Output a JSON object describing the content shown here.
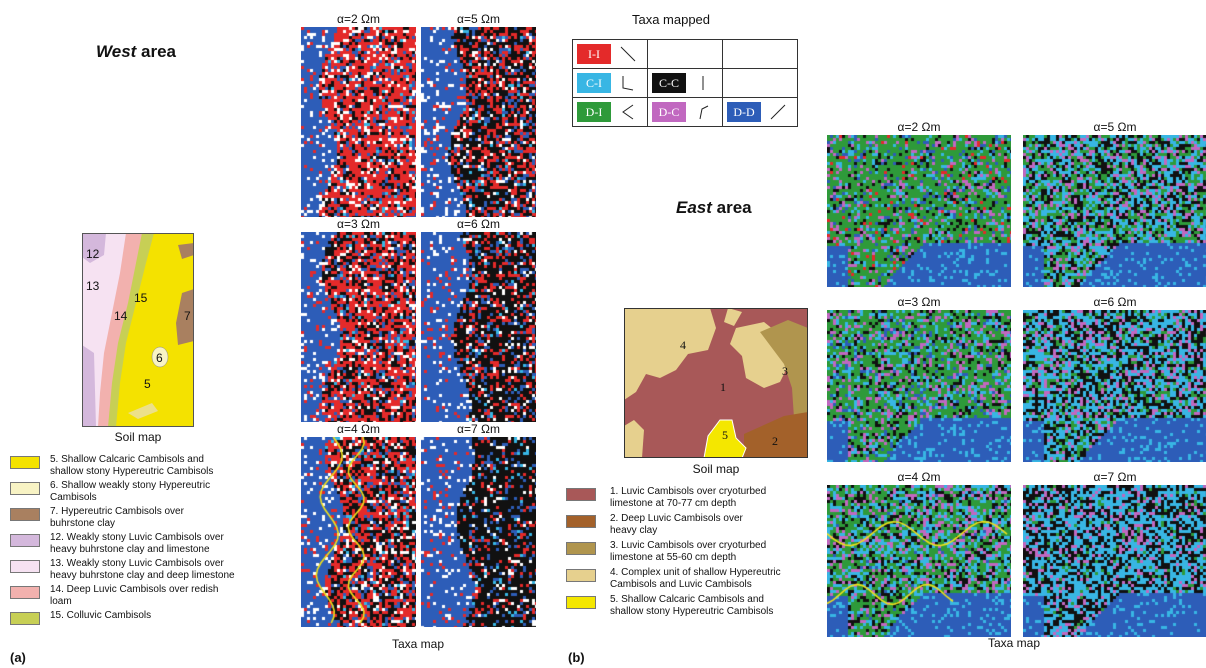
{
  "colors": {
    "I-I": "#e42a2a",
    "C-I": "#38b6e4",
    "C-C": "#111111",
    "D-I": "#2e9a3a",
    "D-C": "#c168c0",
    "D-D": "#2d5db8",
    "boundary": "#f1e01a"
  },
  "west": {
    "title_italic": "West",
    "title_rest": " area",
    "soil_caption": "Soil map",
    "taxa_caption": "Taxa map",
    "panel_labels": [
      "α=2 Ωm",
      "α=5 Ωm",
      "α=3 Ωm",
      "α=6 Ωm",
      "α=4 Ωm",
      "α=7 Ωm"
    ],
    "soil_units": [
      "12",
      "13",
      "14",
      "15",
      "7",
      "6",
      "5"
    ],
    "legend": [
      {
        "color": "#f4e200",
        "line1": "5. Shallow Calcaric Cambisols and",
        "line2": "shallow stony Hypereutric Cambisols"
      },
      {
        "color": "#f8f3c4",
        "line1": "6. Shallow weakly stony Hypereutric",
        "line2": "Cambisols"
      },
      {
        "color": "#a98060",
        "line1": "7. Hypereutric Cambisols over",
        "line2": "buhrstone clay"
      },
      {
        "color": "#d4b8dc",
        "line1": "12. Weakly stony Luvic Cambisols over",
        "line2": "heavy buhrstone clay and limestone"
      },
      {
        "color": "#f6e2f2",
        "line1": "13. Weakly stony Luvic Cambisols over",
        "line2": "heavy buhrstone clay and deep limestone"
      },
      {
        "color": "#f2b1ae",
        "line1": "14. Deep Luvic Cambisols over redish",
        "line2": "loam"
      },
      {
        "color": "#c7cf55",
        "line1": "15. Colluvic Cambisols",
        "line2": ""
      }
    ],
    "fig_letter": "(a)"
  },
  "east": {
    "title_italic": "East",
    "title_rest": " area",
    "soil_caption": "Soil map",
    "taxa_caption": "Taxa map",
    "panel_labels": [
      "α=2 Ωm",
      "α=5 Ωm",
      "α=3 Ωm",
      "α=6 Ωm",
      "α=4 Ωm",
      "α=7 Ωm"
    ],
    "soil_units": [
      "4",
      "1",
      "3",
      "5",
      "2"
    ],
    "legend": [
      {
        "color": "#a85858",
        "line1": "1. Luvic Cambisols over cryoturbed",
        "line2": "limestone at 70-77 cm depth"
      },
      {
        "color": "#a3612a",
        "line1": "2. Deep Luvic Cambisols over",
        "line2": "heavy clay"
      },
      {
        "color": "#b0954e",
        "line1": "3. Luvic Cambisols over cryoturbed",
        "line2": "limestone at 55-60 cm depth"
      },
      {
        "color": "#e6d08e",
        "line1": "4. Complex unit of shallow Hypereutric",
        "line2": "Cambisols and Luvic Cambisols"
      },
      {
        "color": "#f4e700",
        "line1": "5. Shallow Calcaric Cambisols and",
        "line2": "shallow stony Hypereutric Cambisols"
      }
    ],
    "fig_letter": "(b)"
  },
  "taxa_mapped": {
    "title": "Taxa mapped",
    "cells": [
      {
        "code": "I-I",
        "row": 0,
        "col": 0
      },
      {
        "code": "C-I",
        "row": 1,
        "col": 0
      },
      {
        "code": "C-C",
        "row": 1,
        "col": 1
      },
      {
        "code": "D-I",
        "row": 2,
        "col": 0
      },
      {
        "code": "D-C",
        "row": 2,
        "col": 1
      },
      {
        "code": "D-D",
        "row": 2,
        "col": 2
      }
    ]
  }
}
